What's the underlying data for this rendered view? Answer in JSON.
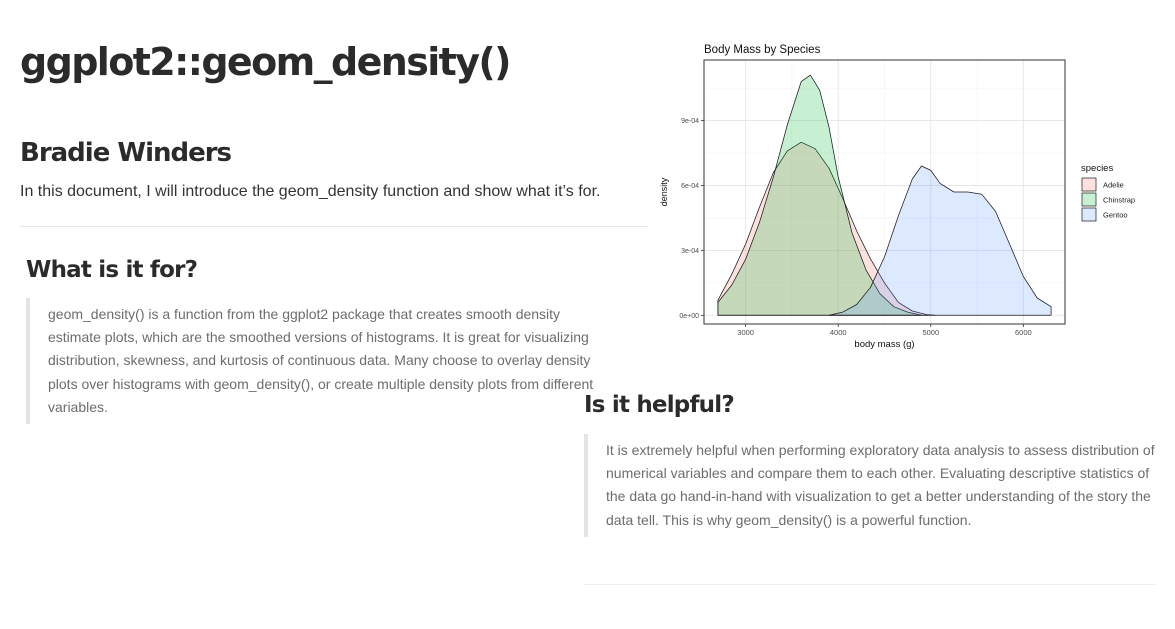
{
  "document": {
    "title": "ggplot2::geom_density()",
    "author": "Bradie Winders",
    "intro": "In this document, I will introduce the geom_density function and show what it’s for."
  },
  "sections": [
    {
      "heading": "What is it for?",
      "body": "geom_density() is a function from the ggplot2 package that creates smooth density estimate plots, which are the smoothed versions of histograms. It is great for visualizing distribution, skewness, and kurtosis of continuous data. Many choose to overlay density plots over histograms with geom_density(), or create multiple density plots from different variables."
    },
    {
      "heading": "Is it helpful?",
      "body": "It is extremely helpful when performing exploratory data analysis to assess distribution of numerical variables and compare them to each other. Evaluating descriptive statistics of the data go hand-in-hand with visualization to get a better understanding of the story the data tell. This is why geom_density() is a powerful function."
    }
  ],
  "chart_data": {
    "type": "area",
    "title": "Body Mass by Species",
    "xlabel": "body mass (g)",
    "ylabel": "density",
    "xlim": [
      2550,
      6450
    ],
    "ylim": [
      -4e-05,
      0.00118
    ],
    "x_ticks": [
      3000,
      4000,
      5000,
      6000
    ],
    "y_ticks": [
      0,
      0.0003,
      0.0006,
      0.0009
    ],
    "y_tick_labels": [
      "0e+00",
      "3e-04",
      "6e-04",
      "9e-04"
    ],
    "grid": true,
    "legend_title": "species",
    "legend_position": "right",
    "series": [
      {
        "name": "Adelie",
        "color": "#F8766D",
        "fill": "#fde3e2",
        "x": [
          2700,
          2850,
          3000,
          3150,
          3300,
          3450,
          3600,
          3750,
          3900,
          4050,
          4200,
          4350,
          4500,
          4650,
          4800,
          4950,
          5050
        ],
        "y": [
          7e-05,
          0.00019,
          0.00033,
          0.0005,
          0.00066,
          0.00076,
          0.0008,
          0.00077,
          0.00068,
          0.00054,
          0.00039,
          0.00026,
          0.00015,
          6e-05,
          2e-05,
          4e-06,
          0
        ]
      },
      {
        "name": "Chinstrap",
        "color": "#00BA38",
        "fill": "#d4f3dd",
        "x": [
          2700,
          2850,
          3000,
          3150,
          3300,
          3450,
          3600,
          3700,
          3800,
          3900,
          4000,
          4150,
          4300,
          4450,
          4600,
          4750,
          4900
        ],
        "y": [
          6e-05,
          0.00014,
          0.00026,
          0.00043,
          0.00064,
          0.00088,
          0.00108,
          0.00111,
          0.00104,
          0.00087,
          0.00064,
          0.00038,
          0.00021,
          0.0001,
          4e-05,
          1.5e-05,
          0
        ]
      },
      {
        "name": "Gentoo",
        "color": "#619CFF",
        "fill": "#dce8fd",
        "x": [
          3900,
          4050,
          4200,
          4350,
          4500,
          4650,
          4800,
          4900,
          5000,
          5100,
          5250,
          5400,
          5550,
          5700,
          5850,
          6000,
          6150,
          6300
        ],
        "y": [
          0,
          1.5e-05,
          5e-05,
          0.00013,
          0.00027,
          0.00046,
          0.00063,
          0.00069,
          0.00067,
          0.00061,
          0.00057,
          0.00057,
          0.00056,
          0.00048,
          0.00033,
          0.00018,
          8e-05,
          4e-05
        ]
      }
    ]
  }
}
